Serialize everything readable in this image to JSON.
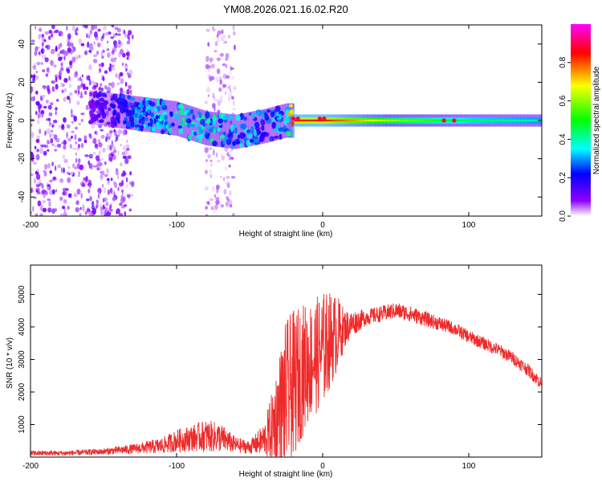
{
  "title": "YM08.2026.021.16.02.R20",
  "colors": {
    "snr_line": "#ee2a2a",
    "axes": "#000000",
    "background": "#ffffff"
  },
  "chart_data": [
    {
      "type": "heatmap",
      "title": "YM08.2026.021.16.02.R20",
      "xlabel": "Height of straight line (km)",
      "ylabel": "Frequency (Hz)",
      "xlim": [
        -200,
        150
      ],
      "ylim": [
        -50,
        50
      ],
      "x_ticks": [
        -200,
        -100,
        0,
        100
      ],
      "y_ticks": [
        -40,
        -20,
        0,
        20,
        40
      ],
      "colorbar": {
        "label": "Normalized spectral amplitude",
        "range": [
          0,
          1
        ],
        "ticks": [
          0.0,
          0.2,
          0.4,
          0.6,
          0.8
        ],
        "tick_labels": [
          "0.0",
          "0.2",
          "0.4",
          "0.6",
          "0.8"
        ],
        "colormap": [
          "#ffffff",
          "#8f00ff",
          "#0000ff",
          "#00ffff",
          "#00ff00",
          "#ffff00",
          "#ff0000",
          "#ff00ff"
        ]
      },
      "series": [
        {
          "name": "center frequency (Hz)",
          "x": [
            -160,
            -140,
            -120,
            -100,
            -80,
            -60,
            -40,
            -25,
            -20,
            0,
            50,
            100,
            150
          ],
          "values": [
            7,
            5,
            3,
            1,
            -4,
            -6,
            -3,
            0,
            0,
            0,
            0,
            0,
            0
          ]
        },
        {
          "name": "normalized amplitude",
          "x": [
            -160,
            -140,
            -120,
            -100,
            -80,
            -60,
            -40,
            -25,
            -20,
            0,
            50,
            100,
            150
          ],
          "values": [
            0.1,
            0.2,
            0.3,
            0.35,
            0.35,
            0.3,
            0.25,
            0.3,
            0.85,
            0.85,
            0.6,
            0.45,
            0.4
          ]
        }
      ],
      "noise_regions": [
        {
          "name": "broadband scatter",
          "x_range": [
            -200,
            -130
          ],
          "y_range": [
            -50,
            50
          ],
          "level": 0.1
        },
        {
          "name": "vertical band",
          "x_range": [
            -80,
            -60
          ],
          "y_range": [
            -50,
            50
          ],
          "level": 0.05
        }
      ],
      "hot_spots": [
        {
          "x": -20,
          "y": 1
        },
        {
          "x": -17,
          "y": 1
        },
        {
          "x": -2,
          "y": 1
        },
        {
          "x": 1,
          "y": 1
        },
        {
          "x": 83,
          "y": 0
        },
        {
          "x": 90,
          "y": 0
        }
      ]
    },
    {
      "type": "line",
      "xlabel": "Height of straight line (km)",
      "ylabel": "SNR (10 * v/v)",
      "xlim": [
        -200,
        150
      ],
      "ylim": [
        0,
        5900
      ],
      "x_ticks": [
        -200,
        -100,
        0,
        100
      ],
      "y_ticks": [
        1000,
        2000,
        3000,
        4000,
        5000
      ],
      "series": [
        {
          "name": "SNR",
          "x": [
            -200,
            -175,
            -150,
            -130,
            -110,
            -100,
            -90,
            -80,
            -70,
            -60,
            -50,
            -40,
            -35,
            -30,
            -25,
            -20,
            -15,
            -10,
            -5,
            0,
            5,
            10,
            15,
            20,
            30,
            40,
            50,
            60,
            70,
            80,
            90,
            100,
            110,
            120,
            130,
            140,
            150
          ],
          "values": [
            120,
            120,
            170,
            250,
            350,
            500,
            580,
            650,
            600,
            380,
            300,
            550,
            850,
            1350,
            1850,
            2200,
            2600,
            2900,
            3100,
            3300,
            3600,
            3800,
            3950,
            4100,
            4300,
            4400,
            4500,
            4400,
            4250,
            4100,
            3950,
            3700,
            3500,
            3300,
            3050,
            2700,
            2250
          ],
          "spread": [
            80,
            80,
            100,
            150,
            250,
            350,
            400,
            500,
            450,
            250,
            200,
            500,
            1100,
            1800,
            2400,
            2300,
            2100,
            1900,
            1800,
            1800,
            1500,
            1200,
            600,
            400,
            250,
            250,
            250,
            250,
            230,
            220,
            210,
            200,
            200,
            200,
            200,
            200,
            200
          ]
        }
      ]
    }
  ]
}
